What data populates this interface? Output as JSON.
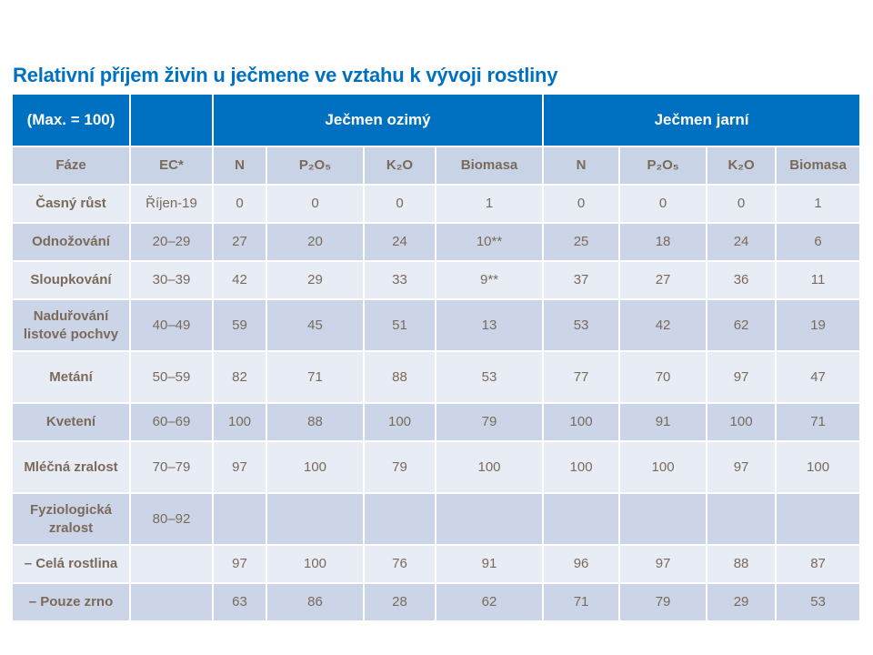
{
  "title": "Relativní příjem živin u ječmene ve vztahu k vývoji rostliny",
  "table": {
    "corner": "(Max. = 100)",
    "groups": [
      "Ječmen ozimý",
      "Ječmen jarní"
    ],
    "columns": [
      "Fáze",
      "EC*",
      "N",
      "P₂O₅",
      "K₂O",
      "Biomasa",
      "N",
      "P₂O₅",
      "K₂O",
      "Biomasa"
    ],
    "rows": [
      {
        "phase": "Časný růst",
        "ec": "Říjen-19",
        "values": [
          "0",
          "0",
          "0",
          "1",
          "0",
          "0",
          "0",
          "1"
        ]
      },
      {
        "phase": "Odnožování",
        "ec": "20–29",
        "values": [
          "27",
          "20",
          "24",
          "10**",
          "25",
          "18",
          "24",
          "6"
        ]
      },
      {
        "phase": "Sloupkování",
        "ec": "30–39",
        "values": [
          "42",
          "29",
          "33",
          "9**",
          "37",
          "27",
          "36",
          "11"
        ]
      },
      {
        "phase": "Naduřování listové pochvy",
        "ec": "40–49",
        "values": [
          "59",
          "45",
          "51",
          "13",
          "53",
          "42",
          "62",
          "19"
        ]
      },
      {
        "phase": "Metání",
        "ec": "50–59",
        "values": [
          "82",
          "71",
          "88",
          "53",
          "77",
          "70",
          "97",
          "47"
        ]
      },
      {
        "phase": "Kvetení",
        "ec": "60–69",
        "values": [
          "100",
          "88",
          "100",
          "79",
          "100",
          "91",
          "100",
          "71"
        ]
      },
      {
        "phase": "Mléčná zralost",
        "ec": "70–79",
        "values": [
          "97",
          "100",
          "79",
          "100",
          "100",
          "100",
          "97",
          "100"
        ]
      },
      {
        "phase": "Fyziologická zralost",
        "ec": "80–92",
        "values": [
          "",
          "",
          "",
          "",
          "",
          "",
          "",
          ""
        ]
      },
      {
        "phase": "– Celá rostlina",
        "ec": "",
        "values": [
          "97",
          "100",
          "76",
          "91",
          "96",
          "97",
          "88",
          "87"
        ]
      },
      {
        "phase": "– Pouze zrno",
        "ec": "",
        "values": [
          "63",
          "86",
          "28",
          "62",
          "71",
          "79",
          "29",
          "53"
        ]
      }
    ]
  },
  "colors": {
    "accent": "#0070C0",
    "header_row": "#C9D3E6",
    "row_light": "#E8ECF4",
    "row_dark": "#CBD5E7",
    "text": "#7a6a5a"
  }
}
